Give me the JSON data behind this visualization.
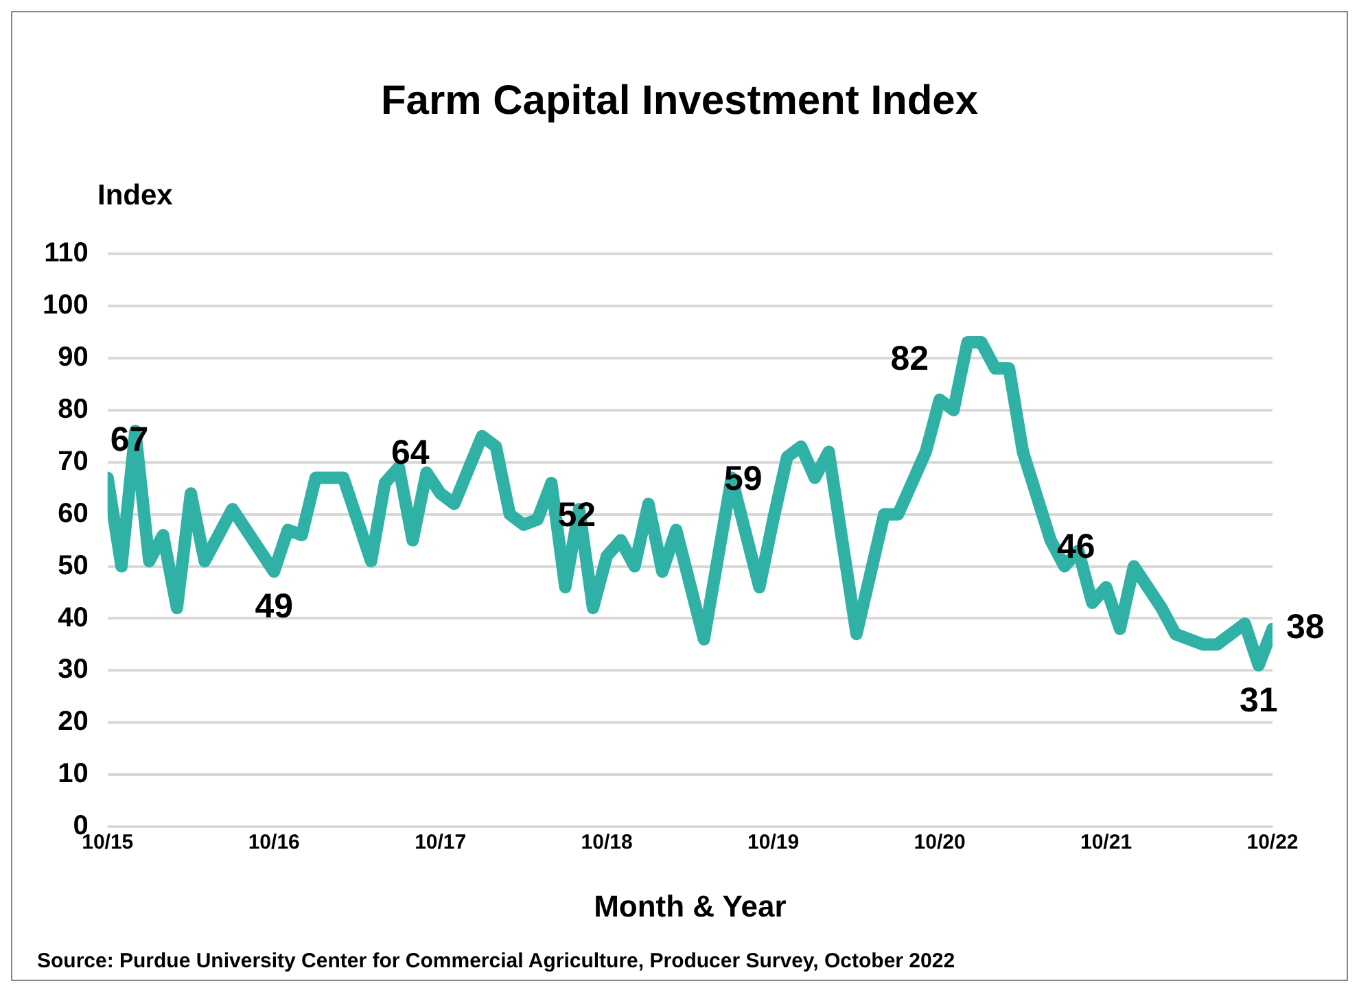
{
  "chart_data": {
    "type": "line",
    "title": "Farm Capital Investment Index",
    "xlabel": "Month & Year",
    "ylabel": "Index",
    "annotations": [
      "Source: Purdue University Center for Commercial Agriculture, Producer Survey, October 2022"
    ],
    "x": [
      "2015-10",
      "2015-11",
      "2015-12",
      "2016-01",
      "2016-02",
      "2016-03",
      "2016-04",
      "2016-05",
      "2016-07",
      "2016-10",
      "2016-11",
      "2016-12",
      "2017-01",
      "2017-03",
      "2017-05",
      "2017-06",
      "2017-07",
      "2017-08",
      "2017-09",
      "2017-10",
      "2017-11",
      "2018-01",
      "2018-02",
      "2018-03",
      "2018-04",
      "2018-05",
      "2018-06",
      "2018-07",
      "2018-08",
      "2018-09",
      "2018-10",
      "2018-11",
      "2018-12",
      "2019-01",
      "2019-02",
      "2019-03",
      "2019-05",
      "2019-07",
      "2019-09",
      "2019-10",
      "2019-11",
      "2019-12",
      "2020-01",
      "2020-02",
      "2020-04",
      "2020-06",
      "2020-07",
      "2020-08",
      "2020-09",
      "2020-10",
      "2020-11",
      "2020-12",
      "2021-01",
      "2021-02",
      "2021-03",
      "2021-04",
      "2021-06",
      "2021-07",
      "2021-08",
      "2021-09",
      "2021-10",
      "2021-11",
      "2021-12",
      "2022-02",
      "2022-03",
      "2022-05",
      "2022-06",
      "2022-08",
      "2022-09",
      "2022-10"
    ],
    "series": [
      {
        "color": "#2fb1a5",
        "values": [
          67,
          50,
          76,
          51,
          56,
          42,
          64,
          51,
          61,
          49,
          57,
          56,
          67,
          67,
          51,
          66,
          69,
          55,
          68,
          64,
          62,
          75,
          73,
          60,
          58,
          59,
          66,
          46,
          61,
          42,
          52,
          55,
          50,
          62,
          49,
          57,
          36,
          67,
          46,
          59,
          71,
          73,
          67,
          72,
          37,
          60,
          60,
          66,
          72,
          82,
          80,
          93,
          93,
          88,
          88,
          72,
          55,
          50,
          53,
          43,
          46,
          38,
          50,
          42,
          37,
          35,
          35,
          39,
          31,
          38
        ],
        "value_labels": [
          "67",
          null,
          null,
          null,
          null,
          null,
          null,
          null,
          null,
          "49",
          null,
          null,
          null,
          null,
          null,
          null,
          null,
          null,
          null,
          "64",
          null,
          null,
          null,
          null,
          null,
          null,
          null,
          null,
          null,
          null,
          "52",
          null,
          null,
          null,
          null,
          null,
          null,
          null,
          null,
          "59",
          null,
          null,
          null,
          null,
          null,
          null,
          null,
          null,
          null,
          "82",
          null,
          null,
          null,
          null,
          null,
          null,
          null,
          null,
          null,
          null,
          "46",
          null,
          null,
          null,
          null,
          null,
          null,
          null,
          "31",
          "38"
        ]
      }
    ],
    "xlim": [
      "2015-10",
      "2022-10"
    ],
    "xticks": [
      {
        "value": "2015-10",
        "label": "10/15"
      },
      {
        "value": "2016-10",
        "label": "10/16"
      },
      {
        "value": "2017-10",
        "label": "10/17"
      },
      {
        "value": "2018-10",
        "label": "10/18"
      },
      {
        "value": "2019-10",
        "label": "10/19"
      },
      {
        "value": "2020-10",
        "label": "10/20"
      },
      {
        "value": "2021-10",
        "label": "10/21"
      },
      {
        "value": "2022-10",
        "label": "10/22"
      }
    ],
    "ylim": [
      0,
      110
    ],
    "yticks": [
      0,
      10,
      20,
      30,
      40,
      50,
      60,
      70,
      80,
      90,
      100,
      110
    ],
    "grid": "y",
    "legend": false,
    "marker": "none",
    "line_style": "solid"
  }
}
